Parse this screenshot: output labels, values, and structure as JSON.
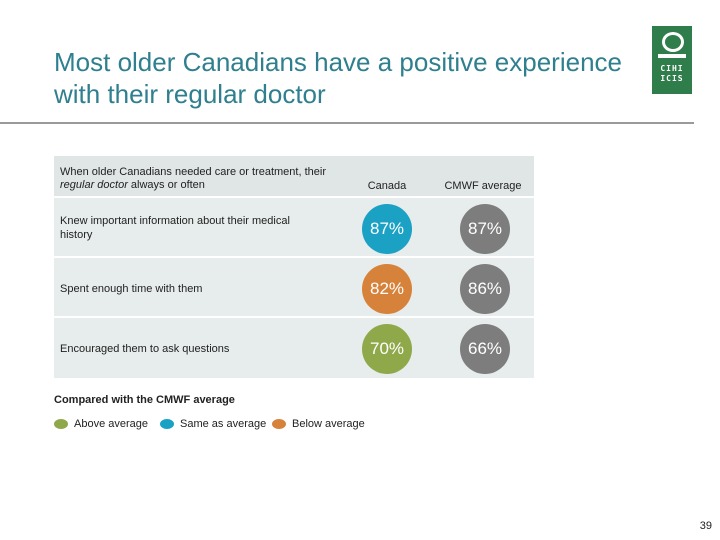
{
  "slide": {
    "title_line1": "Most older Canadians have a positive experience",
    "title_line2": "with their regular doctor",
    "page_number": "39"
  },
  "logo": {
    "letters_row1": "CIHI",
    "letters_row2": "ICIS"
  },
  "table": {
    "header_part1": "When older Canadians needed care or treatment, their ",
    "header_emphasis": "regular doctor",
    "header_part2": " always or often",
    "col_canada": "Canada",
    "col_cmwf": "CMWF average",
    "rows": [
      {
        "label": "Knew important information about their medical history",
        "canada": "87%",
        "canada_status": "same",
        "cmwf": "87%"
      },
      {
        "label": "Spent enough time with them",
        "canada": "82%",
        "canada_status": "below",
        "cmwf": "86%"
      },
      {
        "label": "Encouraged them to ask questions",
        "canada": "70%",
        "canada_status": "above",
        "cmwf": "66%"
      }
    ]
  },
  "legend": {
    "title": "Compared with the CMWF average",
    "items": [
      {
        "label": "Above average",
        "color": "#8fa94a"
      },
      {
        "label": "Same as average",
        "color": "#1ba1c4"
      },
      {
        "label": "Below average",
        "color": "#d7823a"
      }
    ]
  },
  "colors": {
    "title": "#2f7f8f",
    "cmwf_circle": "#7d7d7d",
    "logo": "#2e7d4b"
  }
}
